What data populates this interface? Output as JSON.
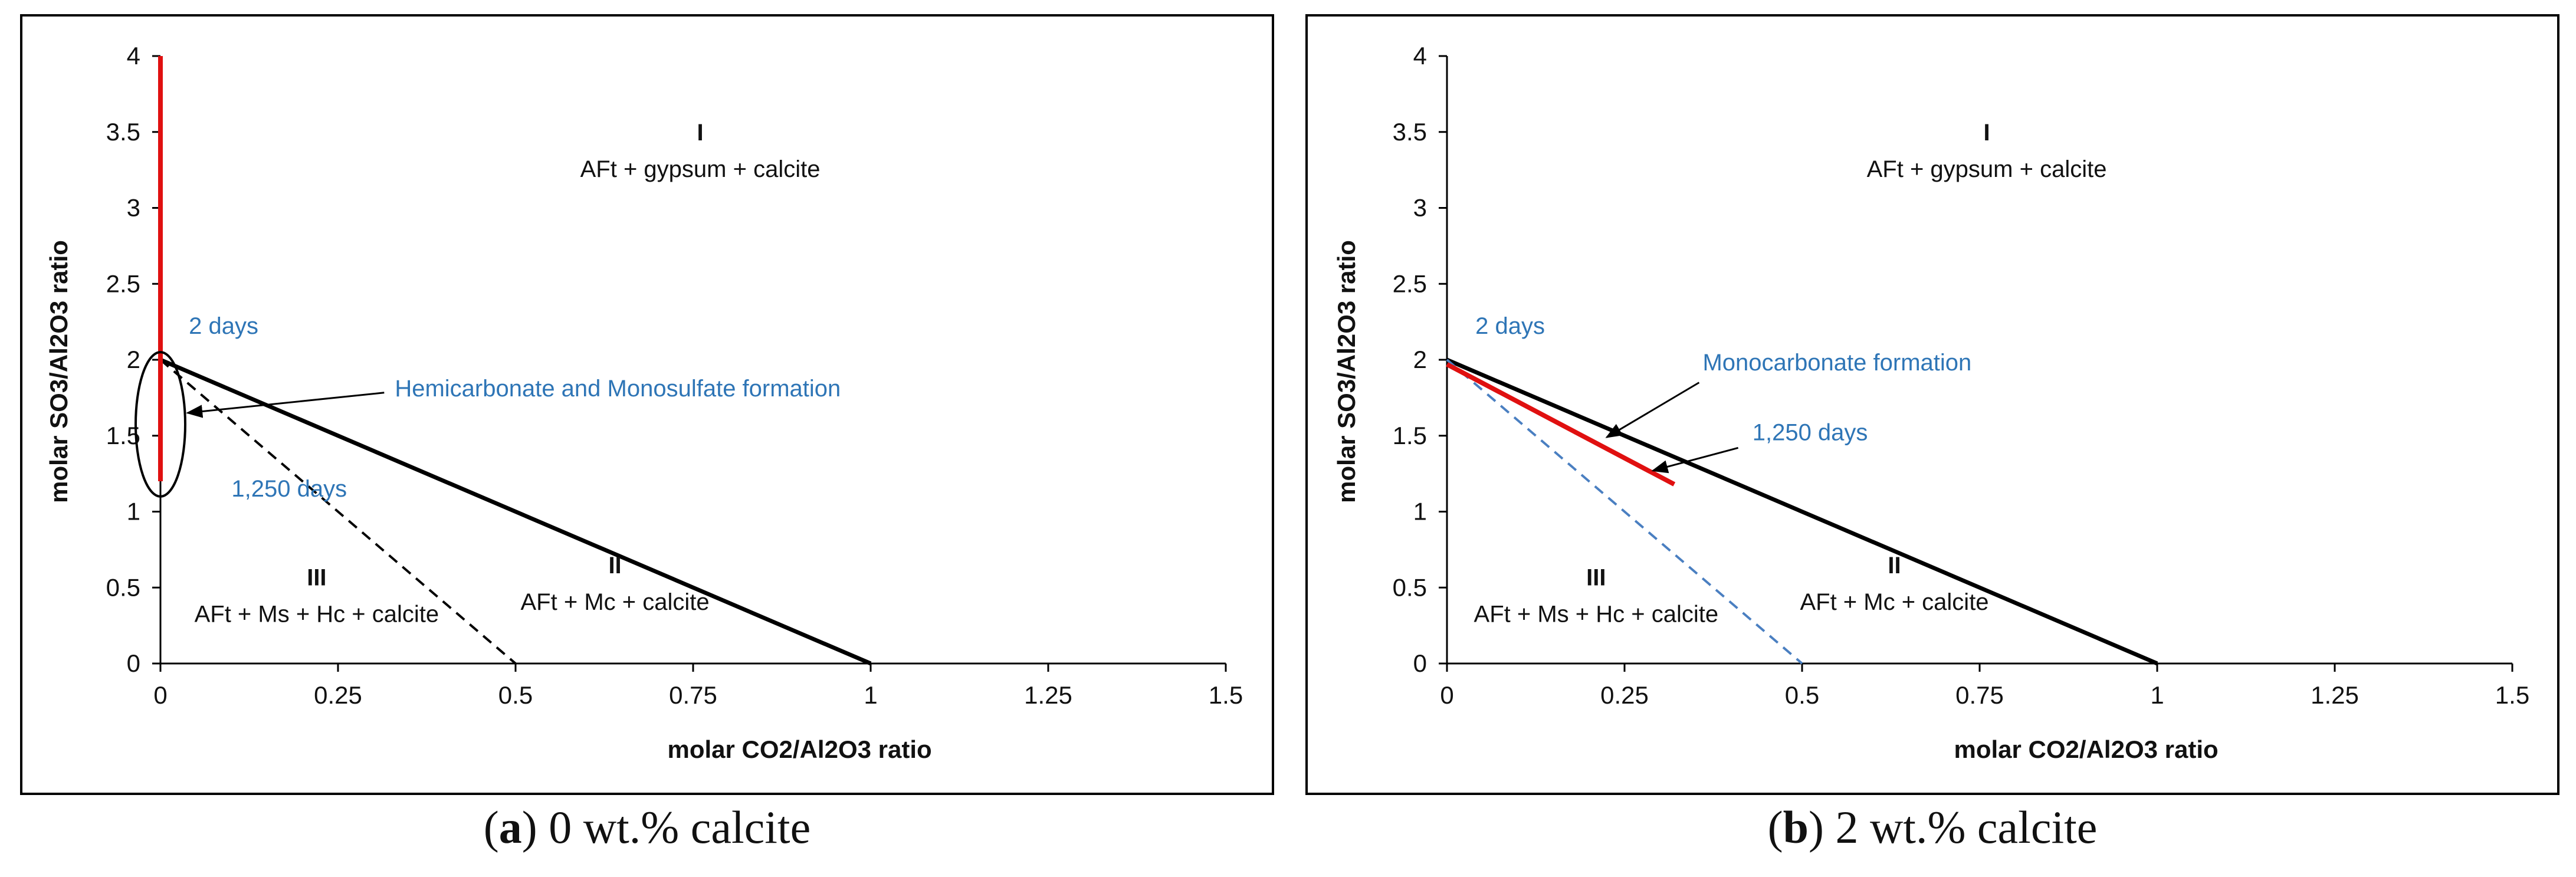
{
  "chart_data": [
    {
      "type": "line",
      "panel": "a",
      "caption_letter": "a",
      "caption_text": "0 wt.% calcite",
      "xlabel": "molar CO2/Al2O3 ratio",
      "ylabel": "molar SO3/Al2O3 ratio",
      "xlim": [
        0,
        1.5
      ],
      "ylim": [
        0,
        4
      ],
      "xticks": [
        "0",
        "0.25",
        "0.5",
        "0.75",
        "1",
        "1.25",
        "1.5"
      ],
      "xtick_values": [
        0,
        0.25,
        0.5,
        0.75,
        1,
        1.25,
        1.5
      ],
      "yticks": [
        "0",
        "0.5",
        "1",
        "1.5",
        "2",
        "2.5",
        "3",
        "3.5",
        "4"
      ],
      "ytick_values": [
        0,
        0.5,
        1,
        1.5,
        2,
        2.5,
        3,
        3.5,
        4
      ],
      "series": [
        {
          "name": "boundary I/II",
          "style": "solid",
          "color": "#000000",
          "x": [
            0,
            1
          ],
          "y": [
            2,
            0
          ]
        },
        {
          "name": "boundary II/III",
          "style": "dashed",
          "color": "#000000",
          "x": [
            0,
            0.5
          ],
          "y": [
            2,
            0
          ]
        },
        {
          "name": "measured path",
          "style": "solid",
          "color": "#e01010",
          "x": [
            0,
            0,
            0
          ],
          "y": [
            4,
            2,
            1.2
          ]
        }
      ],
      "regions": [
        {
          "numeral": "I",
          "label": "AFt + gypsum + calcite",
          "x": 0.76,
          "y": 3.25
        },
        {
          "numeral": "II",
          "label": "AFt + Mc + calcite",
          "x": 0.64,
          "y": 0.4
        },
        {
          "numeral": "III",
          "label": "AFt + Ms + Hc + calcite",
          "x": 0.22,
          "y": 0.32
        }
      ],
      "annotations": [
        {
          "text": "2 days",
          "x": 0.04,
          "y": 2.17
        },
        {
          "text": "1,250 days",
          "x": 0.1,
          "y": 1.1
        },
        {
          "text": "Hemicarbonate and Monosulfate formation",
          "x": 0.33,
          "y": 1.76
        }
      ]
    },
    {
      "type": "line",
      "panel": "b",
      "caption_letter": "b",
      "caption_text": "2 wt.% calcite",
      "xlabel": "molar CO2/Al2O3 ratio",
      "ylabel": "molar SO3/Al2O3 ratio",
      "xlim": [
        0,
        1.5
      ],
      "ylim": [
        0,
        4
      ],
      "xticks": [
        "0",
        "0.25",
        "0.5",
        "0.75",
        "1",
        "1.25",
        "1.5"
      ],
      "xtick_values": [
        0,
        0.25,
        0.5,
        0.75,
        1,
        1.25,
        1.5
      ],
      "yticks": [
        "0",
        "0.5",
        "1",
        "1.5",
        "2",
        "2.5",
        "3",
        "3.5",
        "4"
      ],
      "ytick_values": [
        0,
        0.5,
        1,
        1.5,
        2,
        2.5,
        3,
        3.5,
        4
      ],
      "series": [
        {
          "name": "boundary I/II",
          "style": "solid",
          "color": "#000000",
          "x": [
            0,
            1
          ],
          "y": [
            2,
            0
          ]
        },
        {
          "name": "boundary II/III",
          "style": "dashed",
          "color": "#4a7fc1",
          "x": [
            0,
            0.5
          ],
          "y": [
            2,
            0
          ]
        },
        {
          "name": "measured path",
          "style": "solid",
          "color": "#e01010",
          "x": [
            0,
            0.32
          ],
          "y": [
            1.97,
            1.18
          ]
        }
      ],
      "regions": [
        {
          "numeral": "I",
          "label": "AFt + gypsum + calcite",
          "x": 0.76,
          "y": 3.25
        },
        {
          "numeral": "II",
          "label": "AFt + Mc + calcite",
          "x": 0.63,
          "y": 0.4
        },
        {
          "numeral": "III",
          "label": "AFt + Ms + Hc + calcite",
          "x": 0.21,
          "y": 0.32
        }
      ],
      "annotations": [
        {
          "text": "2 days",
          "x": 0.04,
          "y": 2.17
        },
        {
          "text": "Monocarbonate formation",
          "x": 0.36,
          "y": 1.93
        },
        {
          "text": "1,250 days",
          "x": 0.43,
          "y": 1.47
        }
      ]
    }
  ]
}
